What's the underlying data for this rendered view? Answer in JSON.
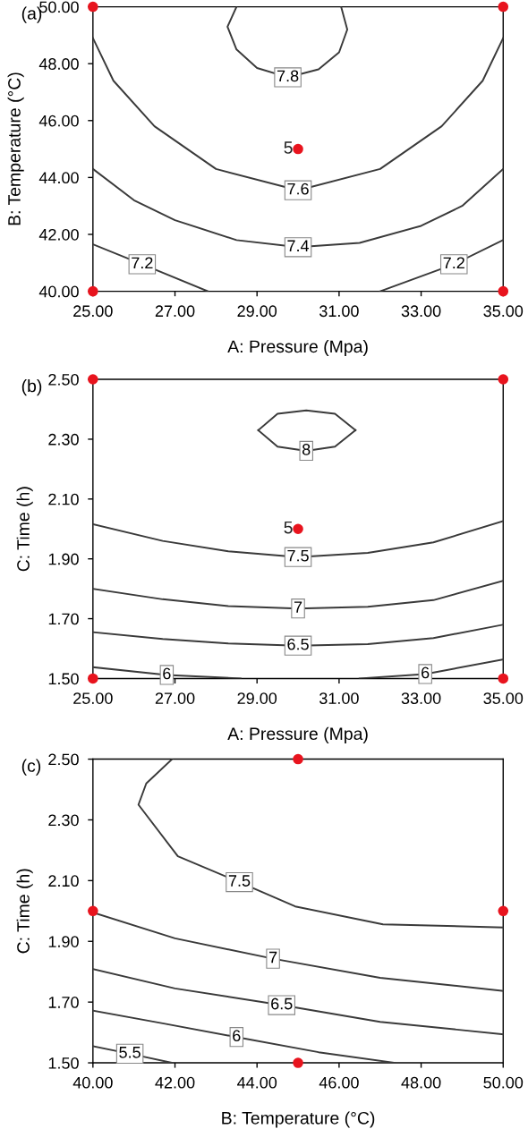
{
  "chart_data": [
    {
      "type": "line",
      "title": "(a)",
      "xlabel": "A: Pressure (Mpa)",
      "ylabel": "B: Temperature (°C)",
      "xlim": [
        25,
        35
      ],
      "ylim": [
        40,
        50
      ],
      "xticks": [
        {
          "value": 25,
          "label": "25.00"
        },
        {
          "value": 27,
          "label": "27.00"
        },
        {
          "value": 29,
          "label": "29.00"
        },
        {
          "value": 31,
          "label": "31.00"
        },
        {
          "value": 33,
          "label": "33.00"
        },
        {
          "value": 35,
          "label": "35.00"
        }
      ],
      "yticks": [
        {
          "value": 40,
          "label": "40.00"
        },
        {
          "value": 42,
          "label": "42.00"
        },
        {
          "value": 44,
          "label": "44.00"
        },
        {
          "value": 46,
          "label": "46.00"
        },
        {
          "value": 48,
          "label": "48.00"
        },
        {
          "value": 50,
          "label": "50.00"
        }
      ],
      "series": [
        {
          "name": "7.2",
          "color": "#3a3a3a",
          "x": [
            25,
            26.2,
            27.8
          ],
          "values": [
            41.65,
            40.95,
            40.0
          ]
        },
        {
          "name": "7.2",
          "color": "#3a3a3a",
          "x": [
            32,
            33.8,
            35
          ],
          "values": [
            40.0,
            40.95,
            41.8
          ]
        },
        {
          "name": "7.4",
          "color": "#3a3a3a",
          "x": [
            25,
            26,
            27,
            28.5,
            30,
            31.5,
            33,
            34,
            35
          ],
          "values": [
            44.3,
            43.2,
            42.5,
            41.8,
            41.55,
            41.7,
            42.3,
            43.0,
            44.3
          ]
        },
        {
          "name": "7.6",
          "color": "#3a3a3a",
          "x": [
            25,
            25.5,
            26.5,
            28,
            30,
            32,
            33.5,
            34.5,
            35
          ],
          "values": [
            48.9,
            47.4,
            45.8,
            44.3,
            43.55,
            44.3,
            45.8,
            47.4,
            48.9
          ]
        },
        {
          "name": "7.8",
          "color": "#3a3a3a",
          "x": [
            28.5,
            28.28,
            28.5,
            29.0,
            29.75,
            30.5,
            31.0,
            31.2,
            31.05
          ],
          "values": [
            50,
            49.3,
            48.5,
            47.85,
            47.52,
            47.8,
            48.4,
            49.2,
            50
          ]
        },
        {
          "type": "scatter",
          "color": "#e8141e",
          "marker": "circle",
          "x": [
            25,
            25,
            35,
            35,
            30
          ],
          "values": [
            40,
            50,
            40,
            50,
            45
          ]
        }
      ],
      "annotations": [
        {
          "text": "5",
          "x": 30,
          "y": 45
        }
      ]
    },
    {
      "type": "line",
      "title": "(b)",
      "xlabel": "A: Pressure (Mpa)",
      "ylabel": "C: Time (h)",
      "xlim": [
        25,
        35
      ],
      "ylim": [
        1.5,
        2.5
      ],
      "xticks": [
        {
          "value": 25,
          "label": "25.00"
        },
        {
          "value": 27,
          "label": "27.00"
        },
        {
          "value": 29,
          "label": "29.00"
        },
        {
          "value": 31,
          "label": "31.00"
        },
        {
          "value": 33,
          "label": "33.00"
        },
        {
          "value": 35,
          "label": "35.00"
        }
      ],
      "yticks": [
        {
          "value": 1.5,
          "label": "1.50"
        },
        {
          "value": 1.7,
          "label": "1.70"
        },
        {
          "value": 1.9,
          "label": "1.90"
        },
        {
          "value": 2.1,
          "label": "2.10"
        },
        {
          "value": 2.3,
          "label": "2.30"
        },
        {
          "value": 2.5,
          "label": "2.50"
        }
      ],
      "series": [
        {
          "name": "6",
          "color": "#3a3a3a",
          "x": [
            25,
            26.8,
            28.6
          ],
          "values": [
            1.538,
            1.512,
            1.5
          ]
        },
        {
          "name": "6",
          "color": "#3a3a3a",
          "x": [
            31.5,
            33.1,
            35
          ],
          "values": [
            1.5,
            1.515,
            1.564
          ]
        },
        {
          "name": "6.5",
          "color": "#3a3a3a",
          "x": [
            25,
            26.7,
            28.3,
            30,
            31.7,
            33.3,
            35
          ],
          "values": [
            1.655,
            1.632,
            1.617,
            1.61,
            1.615,
            1.635,
            1.68
          ]
        },
        {
          "name": "7",
          "color": "#3a3a3a",
          "x": [
            25,
            26.7,
            28.3,
            30,
            31.7,
            33.3,
            35
          ],
          "values": [
            1.8,
            1.765,
            1.742,
            1.734,
            1.74,
            1.762,
            1.827
          ]
        },
        {
          "name": "7.5",
          "color": "#3a3a3a",
          "x": [
            25,
            26.7,
            28.3,
            30,
            31.7,
            33.3,
            35
          ],
          "values": [
            2.016,
            1.96,
            1.925,
            1.906,
            1.92,
            1.955,
            2.026
          ]
        },
        {
          "name": "8",
          "color": "#3a3a3a",
          "x": [
            29.03,
            29.5,
            30.2,
            30.9,
            31.4
          ],
          "values": [
            2.33,
            2.275,
            2.261,
            2.275,
            2.33
          ]
        },
        {
          "color": "#3a3a3a",
          "x": [
            29.03,
            29.5,
            30.2,
            30.9,
            31.4
          ],
          "values": [
            2.33,
            2.385,
            2.396,
            2.385,
            2.33
          ]
        },
        {
          "type": "scatter",
          "color": "#e8141e",
          "marker": "circle",
          "x": [
            25,
            25,
            35,
            35,
            30
          ],
          "values": [
            1.5,
            2.5,
            1.5,
            2.5,
            2.0
          ]
        }
      ],
      "annotations": [
        {
          "text": "5",
          "x": 30,
          "y": 2.0
        }
      ]
    },
    {
      "type": "line",
      "title": "(c)",
      "xlabel": "B: Temperature (°C)",
      "ylabel": "C: Time (h)",
      "xlim": [
        40,
        50
      ],
      "ylim": [
        1.5,
        2.5
      ],
      "xticks": [
        {
          "value": 40,
          "label": "40.00"
        },
        {
          "value": 42,
          "label": "42.00"
        },
        {
          "value": 44,
          "label": "44.00"
        },
        {
          "value": 46,
          "label": "46.00"
        },
        {
          "value": 48,
          "label": "48.00"
        },
        {
          "value": 50,
          "label": "50.00"
        }
      ],
      "yticks": [
        {
          "value": 1.5,
          "label": "1.50"
        },
        {
          "value": 1.7,
          "label": "1.70"
        },
        {
          "value": 1.9,
          "label": "1.90"
        },
        {
          "value": 2.1,
          "label": "2.10"
        },
        {
          "value": 2.3,
          "label": "2.30"
        },
        {
          "value": 2.5,
          "label": "2.50"
        }
      ],
      "series": [
        {
          "name": "5.5",
          "color": "#3a3a3a",
          "x": [
            40,
            40.9,
            41.93
          ],
          "values": [
            1.555,
            1.53,
            1.5
          ]
        },
        {
          "name": "6",
          "color": "#3a3a3a",
          "x": [
            40,
            41.7,
            43.5,
            45.5,
            47.36
          ],
          "values": [
            1.672,
            1.63,
            1.585,
            1.535,
            1.5
          ]
        },
        {
          "name": "6.5",
          "color": "#3a3a3a",
          "x": [
            40,
            42,
            44.6,
            47,
            50
          ],
          "values": [
            1.809,
            1.745,
            1.69,
            1.635,
            1.594
          ]
        },
        {
          "name": "7",
          "color": "#3a3a3a",
          "x": [
            40,
            42,
            44.39,
            47,
            50
          ],
          "values": [
            1.995,
            1.91,
            1.843,
            1.78,
            1.737
          ]
        },
        {
          "name": "7.5",
          "color": "#3a3a3a",
          "x": [
            41.93,
            41.3,
            41.11,
            42.07,
            43.57,
            44.93,
            47.07,
            50
          ],
          "values": [
            2.5,
            2.42,
            2.35,
            2.18,
            2.095,
            2.015,
            1.956,
            1.946
          ]
        },
        {
          "type": "scatter",
          "color": "#e8141e",
          "marker": "circle",
          "x": [
            40,
            45,
            50,
            45
          ],
          "values": [
            2.0,
            2.5,
            2.0,
            1.5
          ]
        }
      ]
    }
  ]
}
